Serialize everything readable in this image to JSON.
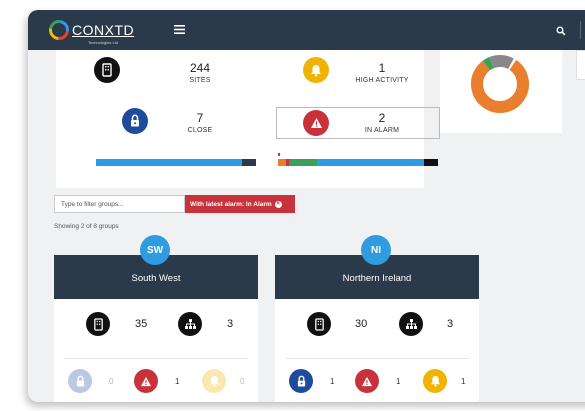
{
  "header": {
    "logo_text": "CONXTD",
    "logo_subtext": "Technologies Ltd",
    "menu_icon": "hamburger-icon",
    "search_icon": "search-icon"
  },
  "stats": {
    "sites": {
      "value": "244",
      "label": "SITES",
      "icon": "building-icon"
    },
    "high_activity": {
      "value": "1",
      "label": "HIGH ACTIVITY",
      "icon": "bell-icon"
    },
    "close": {
      "value": "7",
      "label": "CLOSE",
      "icon": "lock-icon"
    },
    "in_alarm": {
      "value": "2",
      "label": "IN ALARM",
      "icon": "warning-icon"
    }
  },
  "colors": {
    "navy": "#2b3a4a",
    "blue": "#2f9be0",
    "red": "#c8323a",
    "amber": "#f0b400",
    "green": "#3aa05a",
    "orange": "#e87e2e",
    "lock_blue": "#1f4b9b"
  },
  "filter": {
    "placeholder": "Type to filter groups...",
    "chip_label": "With latest alarm: In Alarm",
    "showing_text": "Showing 2 of 8 groups"
  },
  "groups": [
    {
      "badge": "SW",
      "name": "South West",
      "sites_count": "35",
      "subgroups_count": "3",
      "close_count": "0",
      "alarm_count": "1",
      "activity_count": "0"
    },
    {
      "badge": "NI",
      "name": "Northern Ireland",
      "sites_count": "30",
      "subgroups_count": "3",
      "close_count": "1",
      "alarm_count": "1",
      "activity_count": "1"
    }
  ]
}
